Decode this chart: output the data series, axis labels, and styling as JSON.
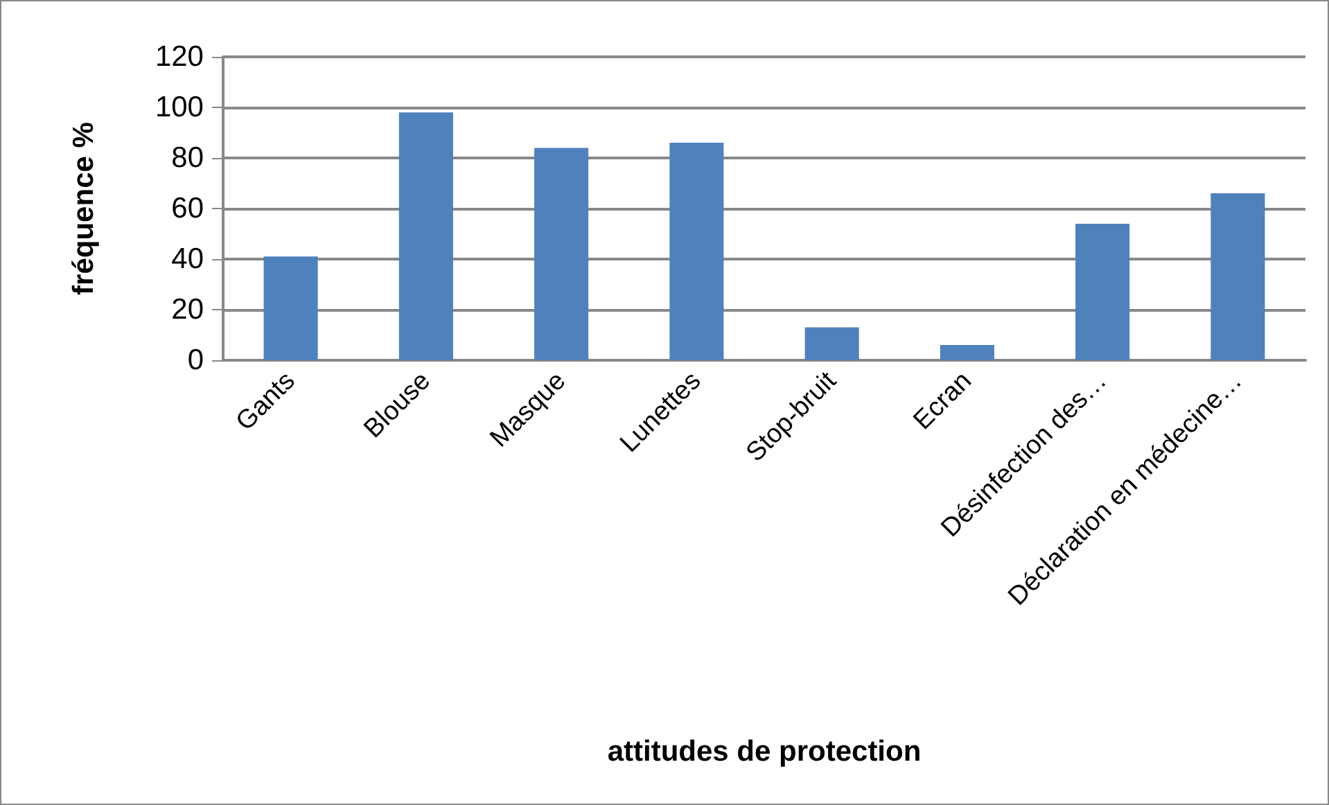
{
  "chart_data": {
    "type": "bar",
    "xlabel": "attitudes de protection",
    "ylabel": "fréquence %",
    "categories": [
      "Gants",
      "Blouse",
      "Masque",
      "Lunettes",
      "Stop-bruit",
      "Ecran",
      "Désinfection des…",
      "Déclaration en médecine…"
    ],
    "values": [
      41,
      98,
      84,
      86,
      13,
      6,
      54,
      66
    ],
    "color": "#4f81bd",
    "ylim": [
      0,
      120
    ],
    "yticks": [
      0,
      20,
      40,
      60,
      80,
      100,
      120
    ],
    "grid": "y"
  }
}
